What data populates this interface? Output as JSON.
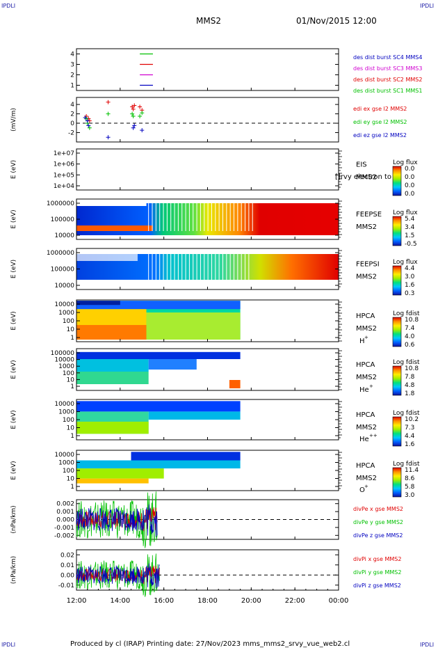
{
  "corners": {
    "tl": "IPDLI",
    "tr": "IPDLI",
    "bl": "IPDLI",
    "br": "IPDLI"
  },
  "header": {
    "mission": "MMS2",
    "datetime": "01/Nov/2015 12:00"
  },
  "footer": {
    "text": "Produced by cl (IRAP)   Printing date: 27/Nov/2023   mms_mms2_srvy_vue_web2.cl"
  },
  "colors": {
    "red": "#e00000",
    "green": "#00c000",
    "blue": "#0000c0",
    "magenta": "#d000d0",
    "spectrogram_scale": [
      "#1010a0",
      "#0060ff",
      "#00c8ff",
      "#00e080",
      "#a0ee00",
      "#ffee00",
      "#ff9000",
      "#e00000"
    ]
  },
  "chart_data": [
    {
      "type": "line",
      "panel": "burst-intervals",
      "ylim": [
        0.5,
        4.5
      ],
      "y_ticks": [
        "1",
        "2",
        "3",
        "4"
      ],
      "series": [
        {
          "name": "des dist burst SC1 MMS1",
          "y": 4,
          "color": "#00c000",
          "x": [
            14.9,
            15.5
          ]
        },
        {
          "name": "des dist burst SC2 MMS2",
          "y": 3,
          "color": "#e00000",
          "x": [
            14.9,
            15.5
          ]
        },
        {
          "name": "des dist burst SC3 MMS3",
          "y": 2,
          "color": "#d000d0",
          "x": [
            14.9,
            15.5
          ]
        },
        {
          "name": "des dist burst SC4 MMS4",
          "y": 1,
          "color": "#0000c0",
          "x": [
            14.9,
            15.5
          ]
        }
      ],
      "legend_colors": [
        "#0000c0",
        "#d000d0",
        "#e00000",
        "#00c000"
      ]
    },
    {
      "type": "scatter",
      "panel": "edi-efield",
      "ylabel": "(mV/m)",
      "ylim": [
        -4,
        5.5
      ],
      "y_ticks": [
        "4",
        "2",
        "0",
        "-2"
      ],
      "series": [
        {
          "name": "edi ex gse l2 MMS2",
          "color": "#e00000",
          "x": [
            12.45,
            12.55,
            12.6,
            13.45,
            14.55,
            14.6,
            14.65,
            14.9,
            15.0
          ],
          "y": [
            1.5,
            1.0,
            0.5,
            4.5,
            3.5,
            3.0,
            3.8,
            3.5,
            2.8
          ]
        },
        {
          "name": "edi ey gse l2 MMS2",
          "color": "#00c000",
          "x": [
            12.45,
            12.5,
            12.6,
            13.45,
            14.55,
            14.6,
            14.9,
            15.0
          ],
          "y": [
            1.0,
            0.0,
            -1.0,
            2.0,
            2.0,
            1.5,
            1.5,
            2.2
          ]
        },
        {
          "name": "edi ez gse l2 MMS2",
          "color": "#0000c0",
          "x": [
            12.4,
            12.5,
            12.55,
            13.45,
            14.6,
            14.65,
            15.0
          ],
          "y": [
            1.2,
            0.5,
            -0.5,
            -3.0,
            -1.0,
            -0.5,
            -1.5
          ]
        }
      ]
    },
    {
      "type": "heatmap",
      "panel": "eis",
      "ylabel": "E (eV)",
      "y_ticks": [
        "1e+07",
        "1e+06",
        "1e+05",
        "1e+04"
      ],
      "right_label": "EIS",
      "right_label2": "MMS2",
      "overlay_text": "[]rvy electron to",
      "colorbar_title": "Log flux",
      "colorbar_ticks": [
        "0.0",
        "0.0",
        "0.0",
        "0.0"
      ],
      "data_range_hours": []
    },
    {
      "type": "heatmap",
      "panel": "feepse",
      "ylabel": "E (eV)",
      "y_ticks": [
        "1000000",
        "100000",
        "10000"
      ],
      "right_label": "FEEPSE",
      "right_label2": "MMS2",
      "colorbar_title": "Log flux",
      "colorbar_ticks": [
        "5.4",
        "3.4",
        "1.5",
        "-0.5"
      ],
      "data_range_hours": [
        12.0,
        24.0
      ]
    },
    {
      "type": "heatmap",
      "panel": "feepsi",
      "ylabel": "E (eV)",
      "y_ticks": [
        "1000000",
        "100000",
        "10000"
      ],
      "right_label": "FEEPSI",
      "right_label2": "MMS2",
      "colorbar_title": "Log flux",
      "colorbar_ticks": [
        "4.4",
        "3.0",
        "1.6",
        "0.3"
      ],
      "data_range_hours": [
        12.0,
        24.0
      ]
    },
    {
      "type": "heatmap",
      "panel": "hpca-h",
      "ylabel": "E (eV)",
      "y_ticks": [
        "10000",
        "1000",
        "100",
        "10",
        "1"
      ],
      "right_label": "HPCA",
      "right_label2": "MMS2",
      "species": "H",
      "species_sup": "+",
      "colorbar_title": "Log fdist",
      "colorbar_ticks": [
        "10.8",
        "7.4",
        "4.0",
        "0.6"
      ],
      "data_range_hours": [
        12.0,
        19.5
      ]
    },
    {
      "type": "heatmap",
      "panel": "hpca-he",
      "ylabel": "E (eV)",
      "y_ticks": [
        "100000",
        "10000",
        "1000",
        "100",
        "10",
        "1"
      ],
      "right_label": "HPCA",
      "right_label2": "MMS2",
      "species": "He",
      "species_sup": "+",
      "colorbar_title": "Log fdist",
      "colorbar_ticks": [
        "10.8",
        "7.8",
        "4.8",
        "1.8"
      ],
      "data_range_hours": [
        12.0,
        19.5
      ]
    },
    {
      "type": "heatmap",
      "panel": "hpca-he2",
      "ylabel": "E (eV)",
      "y_ticks": [
        "10000",
        "1000",
        "100",
        "10",
        "1"
      ],
      "right_label": "HPCA",
      "right_label2": "MMS2",
      "species": "He",
      "species_sup": "++",
      "colorbar_title": "Log fdist",
      "colorbar_ticks": [
        "10.2",
        "7.3",
        "4.4",
        "1.6"
      ],
      "data_range_hours": [
        12.0,
        19.5
      ]
    },
    {
      "type": "heatmap",
      "panel": "hpca-o",
      "ylabel": "E (eV)",
      "y_ticks": [
        "10000",
        "1000",
        "100",
        "10",
        "1"
      ],
      "right_label": "HPCA",
      "right_label2": "MMS2",
      "species": "O",
      "species_sup": "+",
      "colorbar_title": "Log fdist",
      "colorbar_ticks": [
        "11.4",
        "8.6",
        "5.8",
        "3.0"
      ],
      "data_range_hours": [
        12.0,
        19.5
      ]
    },
    {
      "type": "line",
      "panel": "divpe",
      "ylabel": "(nPa/km)",
      "ylim": [
        -0.0025,
        0.0025
      ],
      "y_ticks": [
        "0.002",
        "0.001",
        "0.000",
        "-0.001",
        "-0.002"
      ],
      "data_range_hours": [
        12.0,
        15.7
      ],
      "series": [
        {
          "name": "divPe x gse MMS2",
          "color": "#e00000"
        },
        {
          "name": "divPe y gse MMS2",
          "color": "#00c000"
        },
        {
          "name": "divPe z gse MMS2",
          "color": "#0000c0"
        }
      ]
    },
    {
      "type": "line",
      "panel": "divpi",
      "ylabel": "(nPa/km)",
      "ylim": [
        -0.015,
        0.025
      ],
      "y_ticks": [
        "0.02",
        "0.01",
        "0.00",
        "-0.01"
      ],
      "data_range_hours": [
        12.0,
        15.8
      ],
      "series": [
        {
          "name": "divPi x gse MMS2",
          "color": "#e00000"
        },
        {
          "name": "divPi y gse MMS2",
          "color": "#00c000"
        },
        {
          "name": "divPi z gse MMS2",
          "color": "#0000c0"
        }
      ]
    }
  ],
  "time_axis": {
    "range_hours": [
      12,
      24
    ],
    "tick_labels": [
      "12:00",
      "14:00",
      "16:00",
      "18:00",
      "20:00",
      "22:00",
      "00:00"
    ]
  }
}
